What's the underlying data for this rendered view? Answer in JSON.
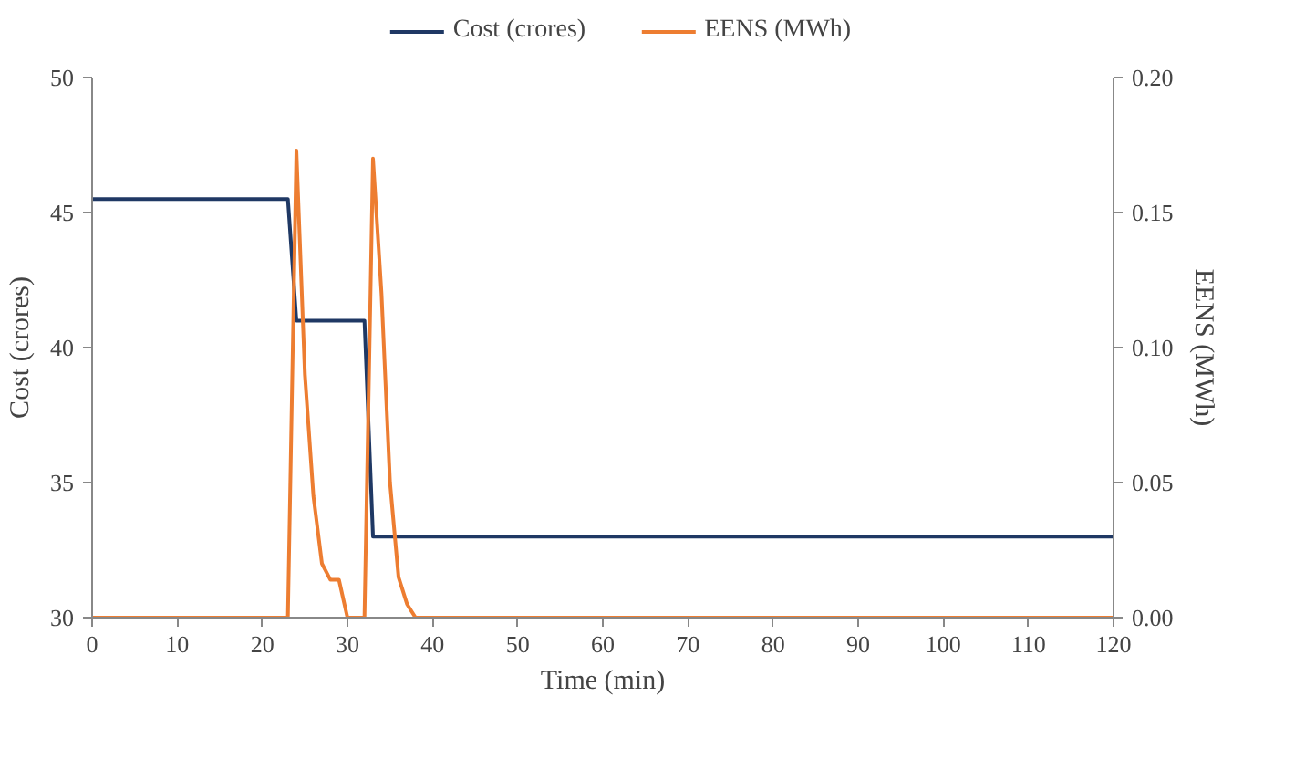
{
  "chart_data": {
    "type": "line",
    "xlabel": "Time (min)",
    "ylabel": "Cost (crores)",
    "y2label": "EENS (MWh)",
    "series": [
      {
        "name": "Cost (crores)",
        "color": "#1f3864",
        "x": [
          0,
          23,
          24,
          32,
          33,
          120
        ],
        "values": [
          45.5,
          45.5,
          41,
          41,
          33,
          33
        ]
      },
      {
        "name": "EENS (MWh)",
        "color": "#ed7d31",
        "axis": "y2",
        "x": [
          0,
          23,
          24,
          25,
          26,
          27,
          28,
          29,
          30,
          32,
          33,
          34,
          35,
          36,
          37,
          38,
          120
        ],
        "values": [
          0,
          0,
          0.173,
          0.09,
          0.045,
          0.02,
          0.014,
          0.014,
          0,
          0,
          0.17,
          0.12,
          0.05,
          0.015,
          0.005,
          0,
          0
        ]
      }
    ],
    "xlim": [
      0,
      120
    ],
    "xticks": [
      0,
      10,
      20,
      30,
      40,
      50,
      60,
      70,
      80,
      90,
      100,
      110,
      120
    ],
    "ylim": [
      30,
      50
    ],
    "yticks": [
      30,
      35,
      40,
      45,
      50
    ],
    "y2lim": [
      0,
      0.2
    ],
    "y2ticks": [
      {
        "value": 0,
        "label": "0.00"
      },
      {
        "value": 0.05,
        "label": "0.05"
      },
      {
        "value": 0.1,
        "label": "0.10"
      },
      {
        "value": 0.15,
        "label": "0.15"
      },
      {
        "value": 0.2,
        "label": "0.20"
      }
    ],
    "legend": "top",
    "grid": false
  }
}
